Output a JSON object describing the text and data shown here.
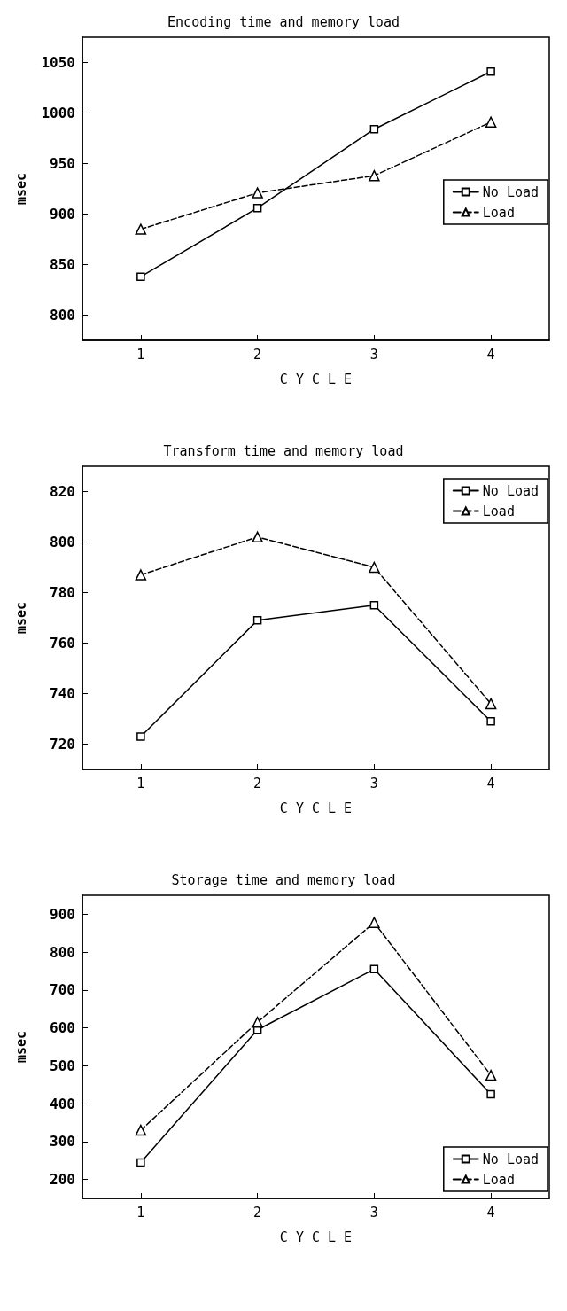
{
  "chart_data": [
    {
      "type": "line",
      "title": "Encoding time and memory load",
      "xlabel": "C Y C L E",
      "ylabel": "msec",
      "x": [
        1,
        2,
        3,
        4
      ],
      "xlim": [
        0.5,
        4.5
      ],
      "xticks": [
        1,
        2,
        3,
        4
      ],
      "ylim": [
        775,
        1075
      ],
      "yticks": [
        800,
        850,
        900,
        950,
        1000,
        1050
      ],
      "grid": false,
      "legend": "right",
      "series": [
        {
          "name": "No Load",
          "color": "#000000",
          "marker": "square",
          "line_style": "solid",
          "values": [
            838,
            906,
            984,
            1041
          ]
        },
        {
          "name": "Load",
          "color": "#000000",
          "marker": "triangle",
          "line_style": "dashed",
          "values": [
            885,
            921,
            938,
            991
          ]
        }
      ]
    },
    {
      "type": "line",
      "title": "Transform time and memory load",
      "xlabel": "C Y C L E",
      "ylabel": "msec",
      "x": [
        1,
        2,
        3,
        4
      ],
      "xlim": [
        0.5,
        4.5
      ],
      "xticks": [
        1,
        2,
        3,
        4
      ],
      "ylim": [
        710,
        830
      ],
      "yticks": [
        720,
        740,
        760,
        780,
        800,
        820
      ],
      "grid": false,
      "legend": "top right",
      "series": [
        {
          "name": "No Load",
          "color": "#000000",
          "marker": "square",
          "line_style": "solid",
          "values": [
            723,
            769,
            775,
            729
          ]
        },
        {
          "name": "Load",
          "color": "#000000",
          "marker": "triangle",
          "line_style": "dashed",
          "values": [
            787,
            802,
            790,
            736
          ]
        }
      ]
    },
    {
      "type": "line",
      "title": "Storage time and memory load",
      "xlabel": "C Y C L E",
      "ylabel": "msec",
      "x": [
        1,
        2,
        3,
        4
      ],
      "xlim": [
        0.5,
        4.5
      ],
      "xticks": [
        1,
        2,
        3,
        4
      ],
      "ylim": [
        150,
        950
      ],
      "yticks": [
        200,
        300,
        400,
        500,
        600,
        700,
        800,
        900
      ],
      "grid": false,
      "legend": "bottom right",
      "series": [
        {
          "name": "No Load",
          "color": "#000000",
          "marker": "square",
          "line_style": "solid",
          "values": [
            245,
            595,
            755,
            425
          ]
        },
        {
          "name": "Load",
          "color": "#000000",
          "marker": "triangle",
          "line_style": "dashed",
          "values": [
            330,
            615,
            878,
            475
          ]
        }
      ]
    }
  ]
}
